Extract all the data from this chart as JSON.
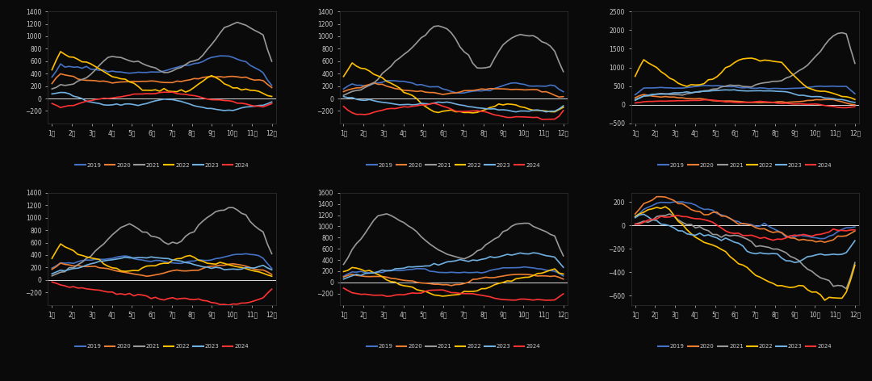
{
  "background_color": "#0a0a0a",
  "text_color": "#cccccc",
  "line_colors": {
    "2019": "#4472C4",
    "2020": "#ED7D31",
    "2021": "#999999",
    "2022": "#FFC000",
    "2023": "#70B0E0",
    "2024": "#FF3333"
  },
  "months": [
    "1月",
    "2月",
    "3月",
    "4月",
    "5月",
    "6月",
    "7月",
    "8月",
    "9月",
    "10月",
    "11月",
    "12月"
  ],
  "subplots": [
    {
      "ylim": [
        -400,
        1400
      ],
      "yticks": [
        -200,
        0,
        200,
        400,
        600,
        800,
        1000,
        1200,
        1400
      ]
    },
    {
      "ylim": [
        -400,
        1400
      ],
      "yticks": [
        -200,
        0,
        200,
        400,
        600,
        800,
        1000,
        1200,
        1400
      ]
    },
    {
      "ylim": [
        -500,
        2500
      ],
      "yticks": [
        -500,
        0,
        500,
        1000,
        1500,
        2000,
        2500
      ]
    },
    {
      "ylim": [
        -400,
        1400
      ],
      "yticks": [
        -200,
        0,
        200,
        400,
        600,
        800,
        1000,
        1200,
        1400
      ]
    },
    {
      "ylim": [
        -400,
        1600
      ],
      "yticks": [
        -200,
        0,
        200,
        400,
        600,
        800,
        1000,
        1200,
        1400,
        1600
      ]
    },
    {
      "ylim": [
        -680,
        280
      ],
      "yticks": [
        -600,
        -400,
        -200,
        0,
        200
      ]
    }
  ],
  "legend_years": [
    "2019",
    "2020",
    "2021",
    "2022",
    "2023",
    "2024"
  ]
}
